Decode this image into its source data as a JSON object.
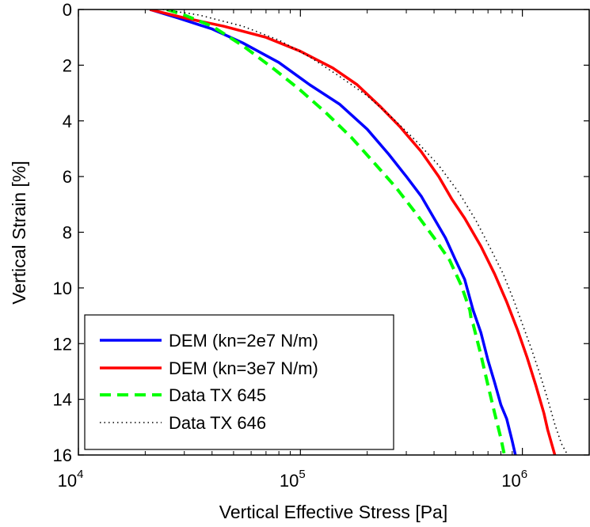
{
  "chart_data": {
    "type": "line",
    "title": "",
    "xlabel": "Vertical Effective Stress [Pa]",
    "ylabel": "Vertical Strain [%]",
    "xscale": "log",
    "xlim": [
      10000,
      2000000
    ],
    "ylim": [
      0,
      16
    ],
    "y_reversed": true,
    "x_ticks": [
      {
        "value": 10000,
        "base": "10",
        "exp": "4"
      },
      {
        "value": 100000,
        "base": "10",
        "exp": "5"
      },
      {
        "value": 1000000,
        "base": "10",
        "exp": "6"
      }
    ],
    "y_ticks": [
      0,
      2,
      4,
      6,
      8,
      10,
      12,
      14,
      16
    ],
    "grid": false,
    "legend": "bottom-left",
    "series": [
      {
        "name": "DEM (kn=2e7 N/m)",
        "color": "#0000ff",
        "style": "solid",
        "x": [
          21000,
          28000,
          40000,
          55000,
          80000,
          110000,
          150000,
          200000,
          250000,
          300000,
          350000,
          400000,
          450000,
          500000,
          550000,
          600000,
          650000,
          700000,
          750000,
          800000,
          850000,
          900000,
          930000
        ],
        "y": [
          0.0,
          0.3,
          0.7,
          1.2,
          1.9,
          2.7,
          3.4,
          4.3,
          5.2,
          6.0,
          6.7,
          7.5,
          8.2,
          9.0,
          9.7,
          10.8,
          11.6,
          12.6,
          13.4,
          14.2,
          14.7,
          15.5,
          16.0
        ]
      },
      {
        "name": "DEM (kn=3e7 N/m)",
        "color": "#ff0000",
        "style": "solid",
        "x": [
          21000,
          30000,
          45000,
          70000,
          100000,
          140000,
          180000,
          230000,
          280000,
          350000,
          420000,
          480000,
          550000,
          650000,
          750000,
          850000,
          950000,
          1050000,
          1150000,
          1250000,
          1300000,
          1400000
        ],
        "y": [
          0.0,
          0.3,
          0.6,
          1.0,
          1.5,
          2.1,
          2.7,
          3.5,
          4.2,
          5.1,
          6.0,
          6.8,
          7.5,
          8.5,
          9.5,
          10.5,
          11.5,
          12.5,
          13.5,
          14.5,
          15.1,
          16.0
        ]
      },
      {
        "name": "Data TX 645",
        "color": "#00ff00",
        "style": "dashed",
        "x": [
          25000,
          30000,
          40000,
          55000,
          75000,
          100000,
          130000,
          170000,
          220000,
          270000,
          330000,
          400000,
          470000,
          530000,
          580000,
          590000,
          600000,
          650000,
          700000,
          750000,
          800000,
          830000
        ],
        "y": [
          0.0,
          0.2,
          0.6,
          1.3,
          2.1,
          2.9,
          3.7,
          4.6,
          5.6,
          6.4,
          7.3,
          8.2,
          9.0,
          9.9,
          10.8,
          11.2,
          11.3,
          12.4,
          13.5,
          14.5,
          15.4,
          16.0
        ]
      },
      {
        "name": "Data TX 646",
        "color": "#000000",
        "style": "dotted",
        "x": [
          24000,
          35000,
          55000,
          80000,
          110000,
          150000,
          200000,
          260000,
          330000,
          420000,
          520000,
          620000,
          720000,
          820000,
          920000,
          1000000,
          1100000,
          1200000,
          1300000,
          1400000,
          1500000,
          1600000
        ],
        "y": [
          0.0,
          0.2,
          0.6,
          1.1,
          1.7,
          2.4,
          3.1,
          3.9,
          4.7,
          5.6,
          6.6,
          7.6,
          8.6,
          9.5,
          10.5,
          11.3,
          12.2,
          13.1,
          14.0,
          14.9,
          15.6,
          16.0
        ]
      }
    ]
  }
}
